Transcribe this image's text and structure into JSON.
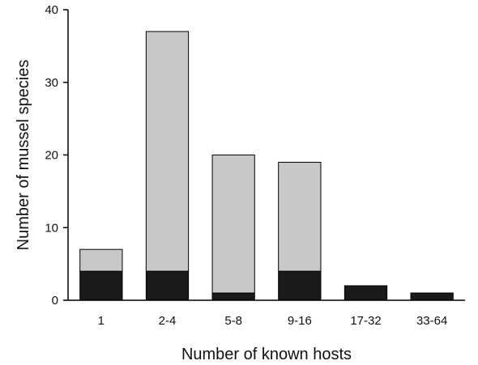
{
  "chart_data": {
    "type": "bar",
    "stacked": true,
    "xlabel": "Number of known hosts",
    "ylabel": "Number of mussel species",
    "categories": [
      "1",
      "2-4",
      "5-8",
      "9-16",
      "17-32",
      "33-64"
    ],
    "series": [
      {
        "values": [
          4,
          4,
          1,
          4,
          2,
          1
        ],
        "color": "#1a1a1a"
      },
      {
        "values": [
          3,
          33,
          19,
          15,
          0,
          0
        ],
        "color": "#c8c8c8"
      }
    ],
    "ylim": [
      0,
      40
    ],
    "yticks": [
      0,
      10,
      20,
      30,
      40
    ],
    "grid": false,
    "legend": "none"
  }
}
